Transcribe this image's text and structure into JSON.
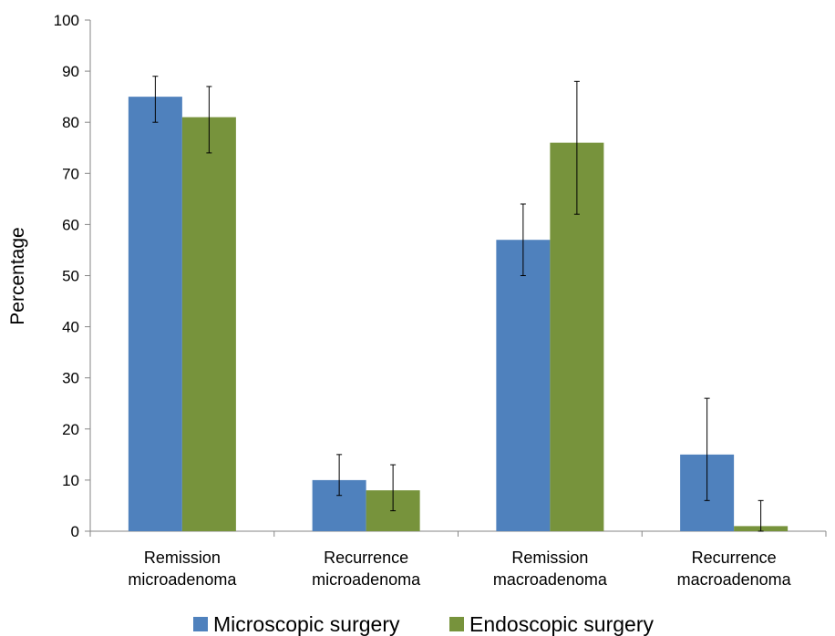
{
  "chart_data": {
    "type": "bar",
    "title": "",
    "xlabel": "",
    "ylabel": "Percentage",
    "ylim": [
      0,
      100
    ],
    "yticks": [
      0,
      10,
      20,
      30,
      40,
      50,
      60,
      70,
      80,
      90,
      100
    ],
    "grid": false,
    "legend_position": "bottom",
    "categories": [
      [
        "Remission",
        "microadenoma"
      ],
      [
        "Recurrence",
        "microadenoma"
      ],
      [
        "Remission",
        "macroadenoma"
      ],
      [
        "Recurrence",
        "macroadenoma"
      ]
    ],
    "series": [
      {
        "name": "Microscopic surgery",
        "color": "#4F81BD",
        "values": [
          85,
          10,
          57,
          15
        ],
        "error_low": [
          80,
          7,
          50,
          6
        ],
        "error_high": [
          89,
          15,
          64,
          26
        ]
      },
      {
        "name": "Endoscopic surgery",
        "color": "#77933C",
        "values": [
          81,
          8,
          76,
          1
        ],
        "error_low": [
          74,
          4,
          62,
          0
        ],
        "error_high": [
          87,
          13,
          88,
          6
        ]
      }
    ]
  }
}
